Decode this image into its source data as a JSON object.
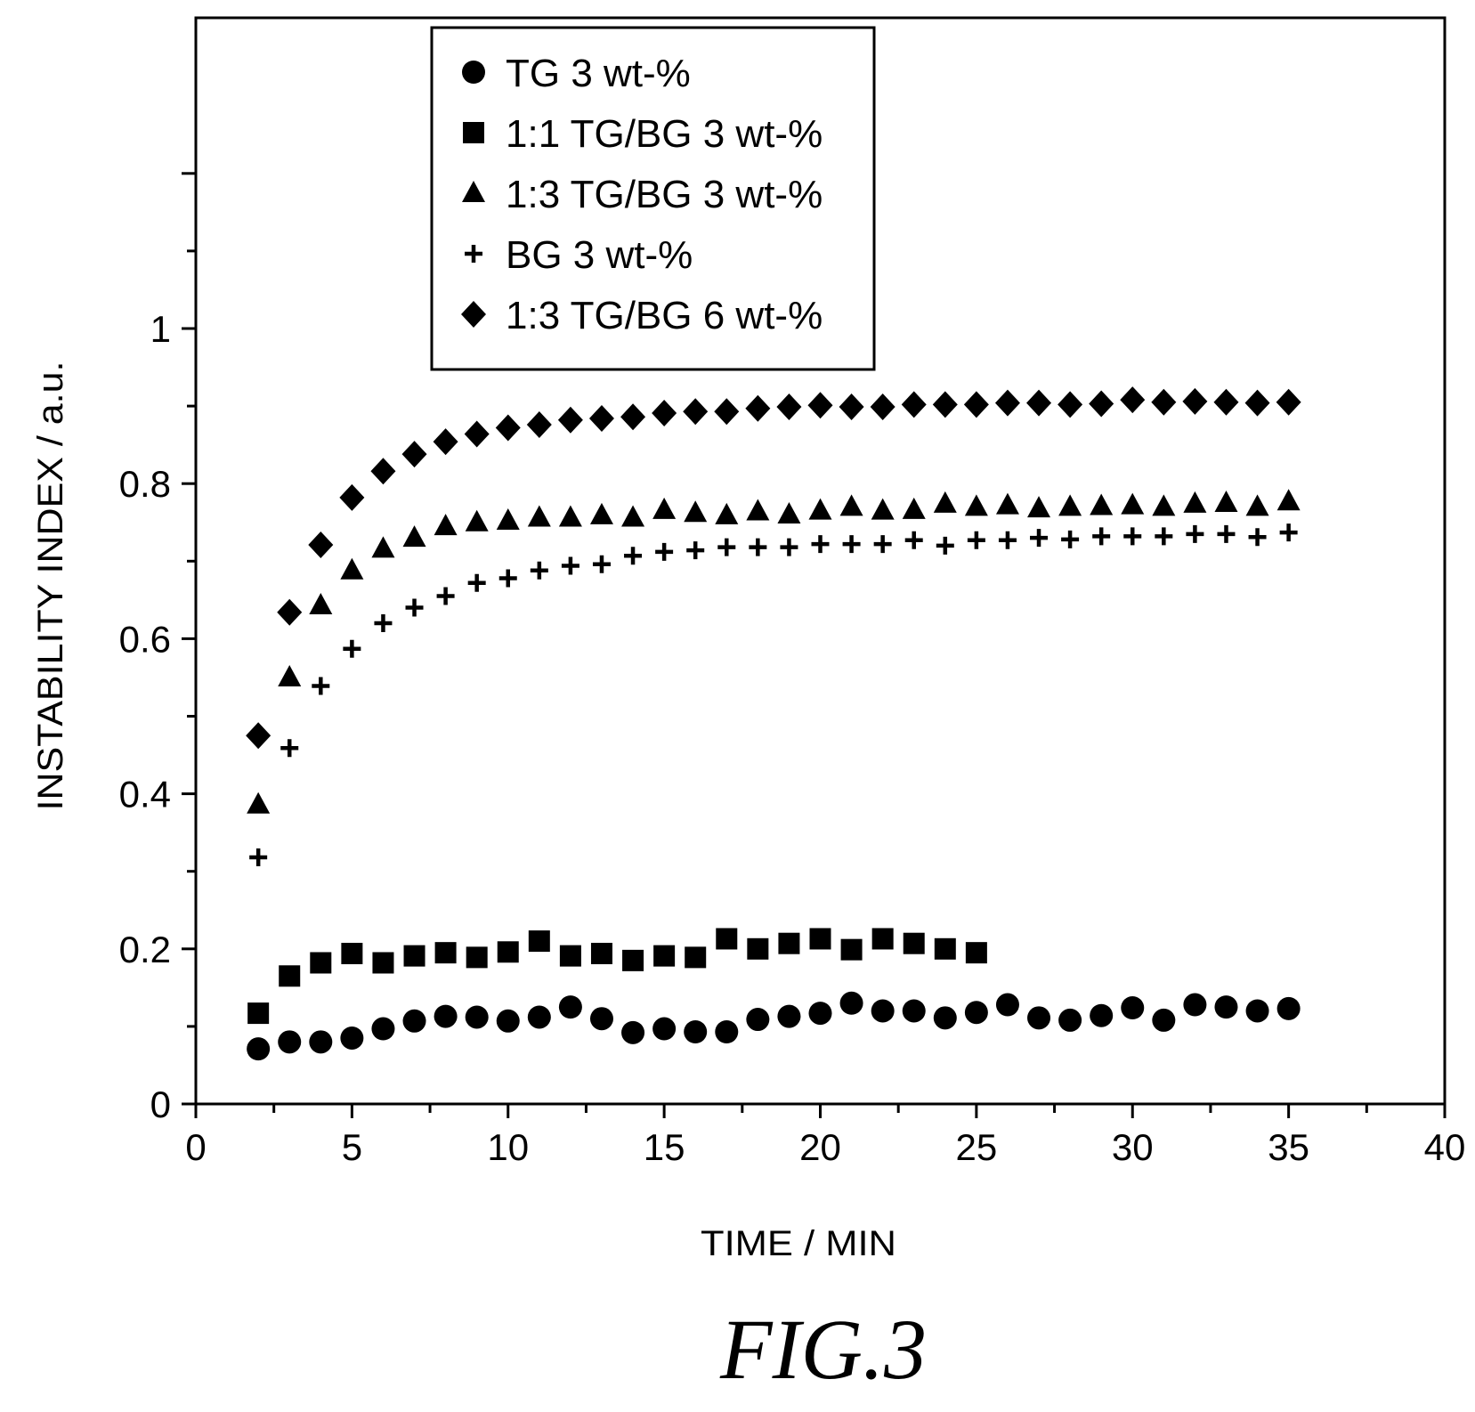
{
  "chart_data": {
    "type": "scatter",
    "title": "",
    "xlabel": "TIME / MIN",
    "ylabel": "INSTABILITY INDEX / a.u.",
    "xlim": [
      0,
      40
    ],
    "ylim": [
      0,
      1.4
    ],
    "x_ticks": [
      "0",
      "5",
      "10",
      "15",
      "20",
      "25",
      "30",
      "35",
      "40"
    ],
    "y_ticks": [
      "0",
      "0.2",
      "0.4",
      "0.6",
      "0.8",
      "1"
    ],
    "grid": false,
    "legend_position": "top-center",
    "series": [
      {
        "name": "TG 3 wt-%",
        "marker": "circle",
        "x": [
          2,
          3,
          4,
          5,
          6,
          7,
          8,
          9,
          10,
          11,
          12,
          13,
          14,
          15,
          16,
          17,
          18,
          19,
          20,
          21,
          22,
          23,
          24,
          25,
          26,
          27,
          28,
          29,
          30,
          31,
          32,
          33,
          34,
          35
        ],
        "y": [
          0.071,
          0.08,
          0.08,
          0.085,
          0.097,
          0.107,
          0.113,
          0.112,
          0.107,
          0.112,
          0.125,
          0.11,
          0.092,
          0.097,
          0.093,
          0.093,
          0.109,
          0.113,
          0.117,
          0.13,
          0.12,
          0.12,
          0.111,
          0.118,
          0.128,
          0.111,
          0.108,
          0.114,
          0.124,
          0.108,
          0.128,
          0.125,
          0.12,
          0.123
        ]
      },
      {
        "name": "1:1 TG/BG 3 wt-%",
        "marker": "square",
        "x": [
          2,
          3,
          4,
          5,
          6,
          7,
          8,
          9,
          10,
          11,
          12,
          13,
          14,
          15,
          16,
          17,
          18,
          19,
          20,
          21,
          22,
          23,
          24,
          25
        ],
        "y": [
          0.117,
          0.165,
          0.182,
          0.194,
          0.182,
          0.191,
          0.195,
          0.189,
          0.196,
          0.21,
          0.191,
          0.194,
          0.185,
          0.191,
          0.189,
          0.213,
          0.2,
          0.207,
          0.213,
          0.199,
          0.213,
          0.207,
          0.2,
          0.195
        ]
      },
      {
        "name": "1:3 TG/BG 3 wt-%",
        "marker": "triangle",
        "x": [
          2,
          3,
          4,
          5,
          6,
          7,
          8,
          9,
          10,
          11,
          12,
          13,
          14,
          15,
          16,
          17,
          18,
          19,
          20,
          21,
          22,
          23,
          24,
          25,
          26,
          27,
          28,
          29,
          30,
          31,
          32,
          33,
          34,
          35
        ],
        "y": [
          0.386,
          0.55,
          0.643,
          0.688,
          0.716,
          0.73,
          0.745,
          0.75,
          0.752,
          0.756,
          0.756,
          0.759,
          0.756,
          0.766,
          0.762,
          0.759,
          0.764,
          0.76,
          0.765,
          0.77,
          0.765,
          0.766,
          0.774,
          0.77,
          0.772,
          0.768,
          0.77,
          0.771,
          0.772,
          0.77,
          0.774,
          0.775,
          0.77,
          0.777
        ]
      },
      {
        "name": "BG 3 wt-%",
        "marker": "plus",
        "x": [
          2,
          3,
          4,
          5,
          6,
          7,
          8,
          9,
          10,
          11,
          12,
          13,
          14,
          15,
          16,
          17,
          18,
          19,
          20,
          21,
          22,
          23,
          24,
          25,
          26,
          27,
          28,
          29,
          30,
          31,
          32,
          33,
          34,
          35
        ],
        "y": [
          0.318,
          0.459,
          0.539,
          0.587,
          0.62,
          0.64,
          0.655,
          0.672,
          0.678,
          0.688,
          0.694,
          0.696,
          0.707,
          0.712,
          0.714,
          0.718,
          0.718,
          0.718,
          0.722,
          0.722,
          0.722,
          0.727,
          0.72,
          0.727,
          0.727,
          0.73,
          0.728,
          0.732,
          0.732,
          0.732,
          0.735,
          0.735,
          0.731,
          0.737
        ]
      },
      {
        "name": "1:3 TG/BG 6 wt-%",
        "marker": "diamond",
        "x": [
          2,
          3,
          4,
          5,
          6,
          7,
          8,
          9,
          10,
          11,
          12,
          13,
          14,
          15,
          16,
          17,
          18,
          19,
          20,
          21,
          22,
          23,
          24,
          25,
          26,
          27,
          28,
          29,
          30,
          31,
          32,
          33,
          34,
          35
        ],
        "y": [
          0.475,
          0.634,
          0.721,
          0.782,
          0.816,
          0.838,
          0.854,
          0.864,
          0.872,
          0.876,
          0.882,
          0.884,
          0.886,
          0.891,
          0.893,
          0.893,
          0.897,
          0.899,
          0.901,
          0.899,
          0.899,
          0.902,
          0.902,
          0.902,
          0.904,
          0.904,
          0.902,
          0.903,
          0.908,
          0.905,
          0.906,
          0.905,
          0.904,
          0.905
        ]
      }
    ]
  },
  "figure": {
    "caption": "FIG.3"
  }
}
